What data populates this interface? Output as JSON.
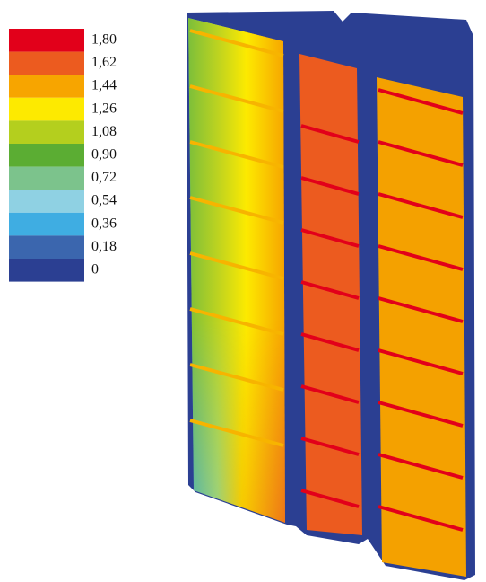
{
  "legend": {
    "items": [
      {
        "label": "1,80",
        "color": "#e2001a"
      },
      {
        "label": "1,62",
        "color": "#ec5b1f"
      },
      {
        "label": "1,44",
        "color": "#f7a500"
      },
      {
        "label": "1,26",
        "color": "#fdea00"
      },
      {
        "label": "1,08",
        "color": "#b4cf1e"
      },
      {
        "label": "0,90",
        "color": "#5bad33"
      },
      {
        "label": "0,72",
        "color": "#7cc38c"
      },
      {
        "label": "0,54",
        "color": "#8fd1e3"
      },
      {
        "label": "0,36",
        "color": "#3fade2"
      },
      {
        "label": "0,18",
        "color": "#3b66ae"
      },
      {
        "label": "0",
        "color": "#2b3f92"
      }
    ]
  }
}
